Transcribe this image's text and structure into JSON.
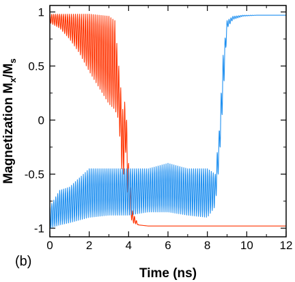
{
  "panel_label": "(b)",
  "colors": {
    "series_x": "#ff3300",
    "series_y": "#2090f0",
    "axis": "#000000"
  },
  "chart_data": {
    "type": "line",
    "xlabel": "Time (ns)",
    "ylabel_main": "Magnetization M",
    "ylabel_sub1": "x",
    "ylabel_slash": "/M",
    "ylabel_sub2": "s",
    "xlim": [
      0,
      12
    ],
    "ylim": [
      -1.08,
      1.06
    ],
    "x_ticks": [
      0,
      2,
      4,
      6,
      8,
      10,
      12
    ],
    "y_ticks": [
      {
        "value": 1,
        "label": "1"
      },
      {
        "value": 0.5,
        "label": "0.5"
      },
      {
        "value": 0,
        "label": "0"
      },
      {
        "value": -0.5,
        "label": "-0.5"
      },
      {
        "value": -1,
        "label": "-1"
      }
    ],
    "grid": false,
    "legend": "none",
    "series": [
      {
        "color": "#ff3300",
        "x": [
          0,
          0.5,
          1.0,
          1.5,
          2.0,
          2.5,
          3.0,
          3.3,
          3.5,
          3.7,
          3.85,
          4.0,
          4.2,
          4.5,
          5.0,
          12
        ],
        "upper": [
          0.98,
          0.98,
          0.98,
          0.98,
          0.98,
          0.97,
          0.96,
          0.92,
          0.5,
          0.1,
          0.2,
          -0.4,
          -0.85,
          -0.97,
          -0.98,
          -0.98
        ],
        "lower": [
          0.9,
          0.85,
          0.75,
          0.62,
          0.45,
          0.3,
          0.15,
          0.1,
          0.0,
          -0.6,
          -0.3,
          -0.85,
          -0.95,
          -0.97,
          -0.98,
          -0.98
        ]
      },
      {
        "color": "#2090f0",
        "x": [
          0,
          0.5,
          1.0,
          2.0,
          3.0,
          4.0,
          5.0,
          6.0,
          7.0,
          8.0,
          8.4,
          8.6,
          8.8,
          9.0,
          9.3,
          9.8,
          10.5,
          12
        ],
        "upper": [
          -0.8,
          -0.65,
          -0.62,
          -0.45,
          -0.45,
          -0.45,
          -0.45,
          -0.4,
          -0.45,
          -0.45,
          -0.5,
          -0.1,
          0.6,
          0.92,
          0.96,
          0.97,
          0.97,
          0.97
        ],
        "lower": [
          -1.0,
          -0.97,
          -0.95,
          -0.9,
          -0.88,
          -0.88,
          -0.85,
          -0.85,
          -0.88,
          -0.9,
          -0.8,
          -0.4,
          0.2,
          0.85,
          0.93,
          0.96,
          0.97,
          0.97
        ]
      }
    ]
  }
}
